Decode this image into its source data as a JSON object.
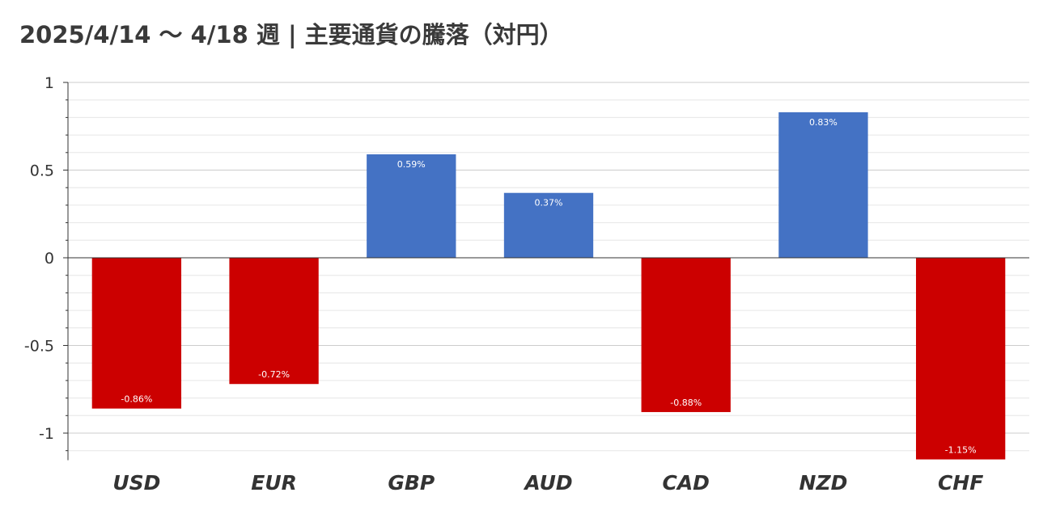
{
  "colors": {
    "positive": "#4472c4",
    "negative": "#cc0000",
    "axis": "#333333",
    "grid_major": "#cccccc",
    "grid_minor": "#e6e6e6",
    "title_text": "#3a3a3a"
  },
  "chart_data": {
    "type": "bar",
    "title": "2025/4/14 〜 4/18 週 | 主要通貨の騰落（対円）",
    "xlabel": "",
    "ylabel": "",
    "categories": [
      "USD",
      "EUR",
      "GBP",
      "AUD",
      "CAD",
      "NZD",
      "CHF"
    ],
    "values": [
      -0.86,
      -0.72,
      0.59,
      0.37,
      -0.88,
      0.83,
      -1.15
    ],
    "data_labels": [
      "-0.86%",
      "-0.72%",
      "0.59%",
      "0.37%",
      "-0.88%",
      "0.83%",
      "-1.15%"
    ],
    "ylim": [
      -1.15,
      1
    ],
    "y_ticks": [
      1,
      0.5,
      0,
      -0.5,
      -1
    ],
    "y_tick_labels": [
      "1",
      "0.5",
      "0",
      "-0.5",
      "-1"
    ],
    "grid": true,
    "legend": "none"
  }
}
